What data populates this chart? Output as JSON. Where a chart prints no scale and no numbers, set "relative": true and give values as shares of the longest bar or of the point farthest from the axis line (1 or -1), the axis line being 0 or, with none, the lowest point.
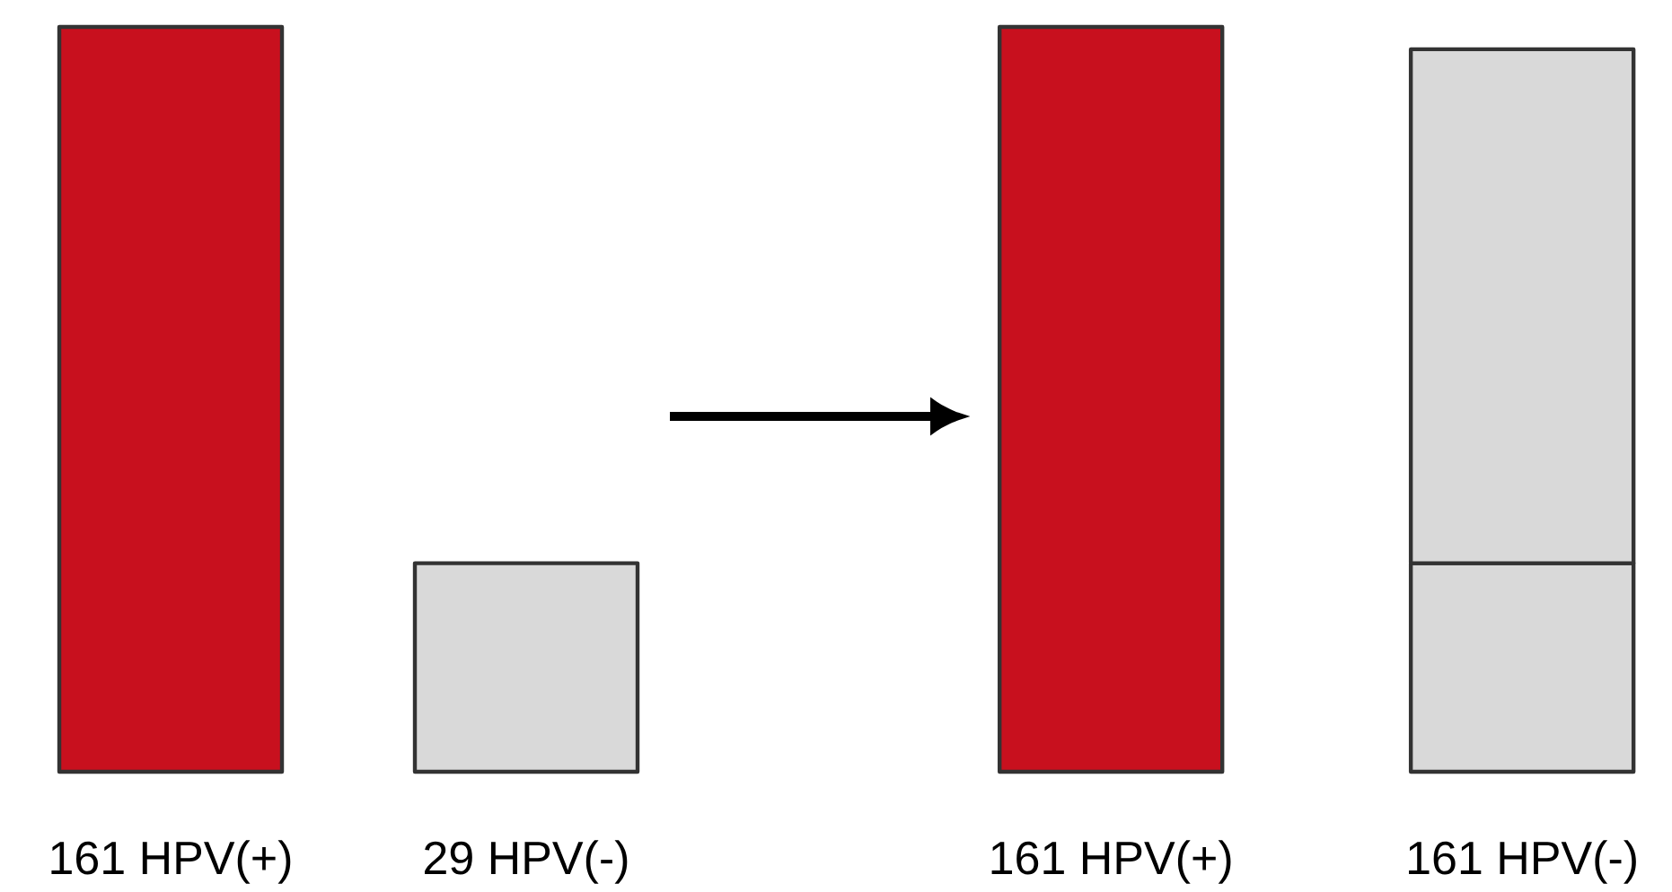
{
  "chart_data": [
    {
      "type": "bar",
      "relative": true,
      "categories": [
        "161 HPV(+)",
        "29 HPV(-)"
      ],
      "values": [
        1,
        0.28
      ],
      "colors": [
        "#c8101e",
        "#d9d9d9"
      ]
    },
    {
      "type": "bar",
      "relative": true,
      "stacked": true,
      "categories": [
        "161 HPV(+)",
        "161 HPV(-)"
      ],
      "series": [
        {
          "colors": [
            "#c8101e",
            "#d9d9d9"
          ],
          "values": [
            1,
            0.28
          ]
        },
        {
          "color": "#d9d9d9",
          "values": [
            null,
            0.69
          ]
        }
      ]
    }
  ]
}
